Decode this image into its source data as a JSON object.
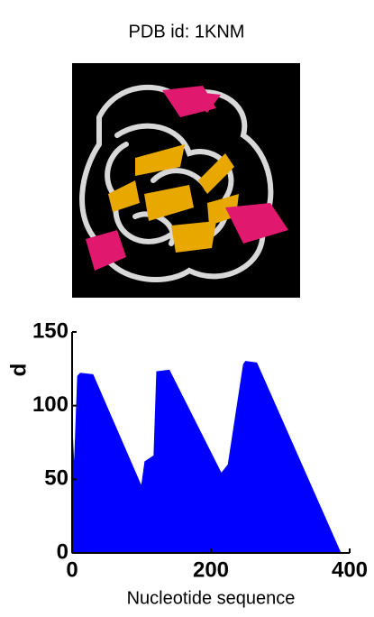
{
  "header": {
    "title": "PDB id: 1KNM"
  },
  "chart_data": {
    "type": "area",
    "xlabel": "Nucleotide sequence",
    "ylabel": "d",
    "x": [
      0,
      3,
      8,
      12,
      30,
      100,
      105,
      118,
      122,
      140,
      215,
      225,
      247,
      250,
      266,
      387
    ],
    "series": [
      {
        "color": "#0000ff",
        "values": [
          85,
          55,
          120,
          122,
          121,
          45,
          62,
          66,
          123,
          124,
          54,
          60,
          128,
          130,
          129,
          0
        ]
      }
    ],
    "xlim": [
      0,
      400
    ],
    "ylim": [
      0,
      150
    ],
    "xticks": [
      0,
      200,
      400
    ],
    "yticks": [
      0,
      50,
      100,
      150
    ]
  }
}
